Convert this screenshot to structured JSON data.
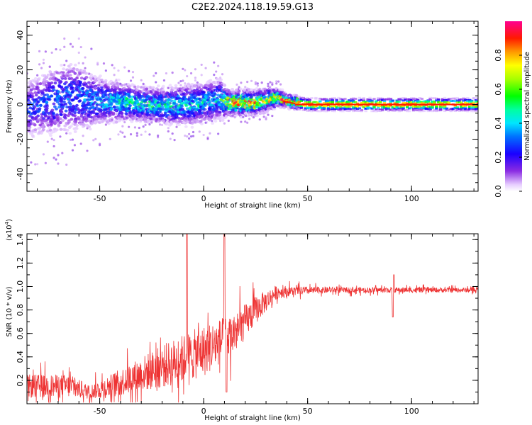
{
  "title": "C2E2.2024.118.19.59.G13",
  "chart_data": [
    {
      "type": "heatmap",
      "xlabel": "Height of straight line (km)",
      "ylabel": "Frequency (Hz)",
      "xlim": [
        -85,
        132
      ],
      "ylim": [
        -50,
        48
      ],
      "xticks": [
        -50,
        0,
        50,
        100
      ],
      "yticks": [
        -40,
        -20,
        0,
        20,
        40
      ],
      "colorbar": {
        "label": "Normalized spectral amplitude",
        "range": [
          0,
          1
        ],
        "ticks": [
          0.0,
          0.2,
          0.4,
          0.6,
          0.8
        ],
        "tick_labels": [
          "0.0",
          "0.2",
          "0.4",
          "0.6",
          "0.8"
        ]
      },
      "ridge": [
        {
          "x": -85,
          "f": -3,
          "spread": 10,
          "amp": 0.25
        },
        {
          "x": -70,
          "f": 3,
          "spread": 12,
          "amp": 0.3
        },
        {
          "x": -60,
          "f": 4,
          "spread": 12,
          "amp": 0.3
        },
        {
          "x": -50,
          "f": 2,
          "spread": 8,
          "amp": 0.35
        },
        {
          "x": -35,
          "f": 1,
          "spread": 6,
          "amp": 0.45
        },
        {
          "x": -20,
          "f": -1,
          "spread": 6,
          "amp": 0.45
        },
        {
          "x": -5,
          "f": 0,
          "spread": 7,
          "amp": 0.4
        },
        {
          "x": 8,
          "f": 3,
          "spread": 7,
          "amp": 0.4
        },
        {
          "x": 12,
          "f": 1,
          "spread": 4,
          "amp": 0.8
        },
        {
          "x": 25,
          "f": 1,
          "spread": 4,
          "amp": 0.75
        },
        {
          "x": 36,
          "f": 4,
          "spread": 3,
          "amp": 0.7
        },
        {
          "x": 40,
          "f": 2,
          "spread": 2,
          "amp": 0.9
        },
        {
          "x": 50,
          "f": 0,
          "spread": 2,
          "amp": 0.9
        },
        {
          "x": 132,
          "f": 0,
          "spread": 2,
          "amp": 0.9
        }
      ]
    },
    {
      "type": "line",
      "xlabel": "Height of straight line (km)",
      "ylabel": "SNR (10 * v/v)",
      "scale_label": "(x10",
      "scale_exp": "4",
      "scale_close": ")",
      "xlim": [
        -85,
        132
      ],
      "ylim": [
        0.0,
        1.45
      ],
      "xticks": [
        -50,
        0,
        50,
        100
      ],
      "yticks": [
        0.2,
        0.4,
        0.6,
        0.8,
        1.0,
        1.2,
        1.4
      ],
      "ytick_labels": [
        "0.2",
        "0.4",
        "0.6",
        "0.8",
        "1.0",
        "1.2",
        "1.4"
      ],
      "color": "#ee3333",
      "trend": [
        {
          "x": -85,
          "mean": 0.15,
          "noise": 0.1
        },
        {
          "x": -65,
          "mean": 0.15,
          "noise": 0.1
        },
        {
          "x": -55,
          "mean": 0.1,
          "noise": 0.06
        },
        {
          "x": -45,
          "mean": 0.15,
          "noise": 0.1
        },
        {
          "x": -30,
          "mean": 0.25,
          "noise": 0.15
        },
        {
          "x": -15,
          "mean": 0.35,
          "noise": 0.2
        },
        {
          "x": 0,
          "mean": 0.45,
          "noise": 0.22
        },
        {
          "x": 15,
          "mean": 0.6,
          "noise": 0.18
        },
        {
          "x": 25,
          "mean": 0.8,
          "noise": 0.12
        },
        {
          "x": 35,
          "mean": 0.95,
          "noise": 0.06
        },
        {
          "x": 42,
          "mean": 0.96,
          "noise": 0.04
        },
        {
          "x": 60,
          "mean": 0.97,
          "noise": 0.025
        },
        {
          "x": 132,
          "mean": 0.97,
          "noise": 0.02
        }
      ],
      "spikes": [
        {
          "x": -8,
          "y": 1.45
        },
        {
          "x": 10,
          "y": 1.45
        },
        {
          "x": 11,
          "y": 0.1
        },
        {
          "x": 91,
          "y": 0.74
        },
        {
          "x": 91.5,
          "y": 1.1
        }
      ]
    }
  ]
}
